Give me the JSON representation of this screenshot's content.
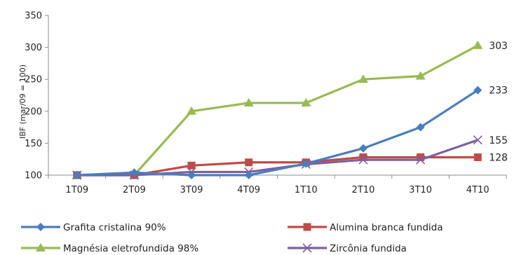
{
  "chart_data": {
    "type": "line",
    "ylabel": "IBF (mar/09 = 100)",
    "xlabel": "",
    "categories": [
      "1T09",
      "2T09",
      "3T09",
      "4T09",
      "1T10",
      "2T10",
      "3T10",
      "4T10"
    ],
    "ylim": [
      100,
      350
    ],
    "yticks": [
      100,
      150,
      200,
      250,
      300,
      350
    ],
    "grid": false,
    "legend_position": "bottom",
    "series": [
      {
        "name": "Grafita cristalina  90%",
        "color": "#4a7ebb",
        "marker": "diamond",
        "values": [
          100,
          104,
          100,
          100,
          118,
          142,
          175,
          233
        ],
        "end_label": "233"
      },
      {
        "name": "Alumina branca fundida",
        "color": "#be4b48",
        "marker": "square",
        "values": [
          100,
          100,
          115,
          120,
          120,
          128,
          128,
          128
        ],
        "end_label": "128"
      },
      {
        "name": "Magnésia eletrofundida  98%",
        "color": "#98b954",
        "marker": "triangle",
        "values": [
          100,
          100,
          200,
          213,
          213,
          250,
          255,
          303
        ],
        "end_label": "303"
      },
      {
        "name": "Zircônia  fundida",
        "color": "#7d60a0",
        "marker": "x",
        "values": [
          100,
          100,
          105,
          105,
          117,
          124,
          124,
          155
        ],
        "end_label": "155"
      }
    ]
  }
}
